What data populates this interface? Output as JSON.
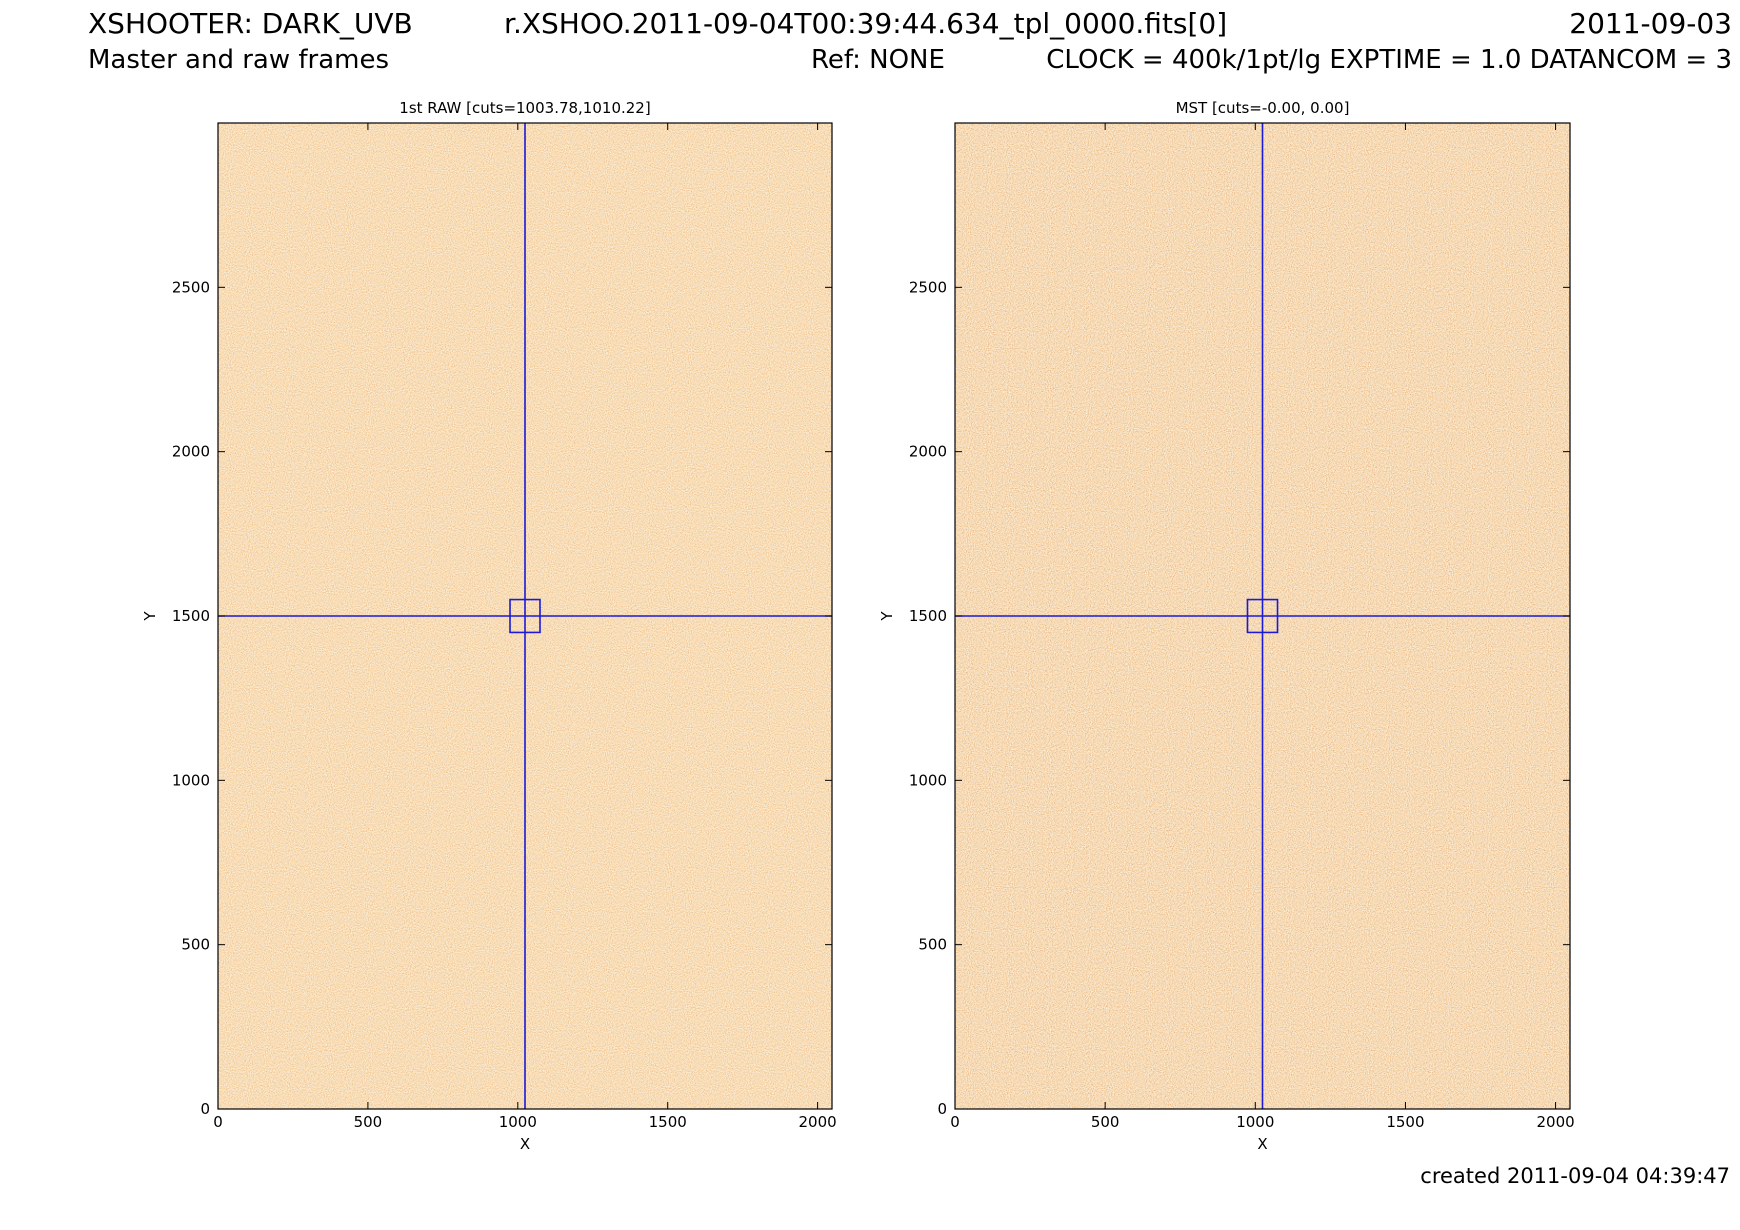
{
  "header": {
    "title": "XSHOOTER: DARK_UVB",
    "filename": "r.XSHOO.2011-09-04T00:39:44.634_tpl_0000.fits[0]",
    "date": "2011-09-03",
    "subtitle": "Master and raw frames",
    "ref": "Ref: NONE",
    "params": "CLOCK = 400k/1pt/lg EXPTIME = 1.0 DATANCOM = 3"
  },
  "footer": {
    "created": "created 2011-09-04 04:39:47"
  },
  "colors": {
    "crosshair": "#1a1ad8",
    "palette": [
      "#000000",
      "#3a0800",
      "#8a1e00",
      "#c0440a",
      "#d8661e",
      "#e88a2e",
      "#f0ae46",
      "#f8d27a",
      "#ffffff"
    ]
  },
  "chart_data": [
    {
      "type": "heatmap",
      "title": "1st RAW [cuts=1003.78,1010.22]",
      "xlabel": "X",
      "ylabel": "Y",
      "xlim": [
        0,
        2048
      ],
      "ylim": [
        0,
        3000
      ],
      "xticks": [
        0,
        500,
        1000,
        1500,
        2000
      ],
      "yticks": [
        0,
        500,
        1000,
        1500,
        2000,
        2500
      ],
      "image_tone": "raw",
      "crosshair": {
        "x": 1024,
        "y": 1500
      },
      "box": {
        "x0": 974,
        "x1": 1074,
        "y0": 1450,
        "y1": 1550
      }
    },
    {
      "type": "heatmap",
      "title": "MST [cuts=-0.00, 0.00]",
      "xlabel": "X",
      "ylabel": "Y",
      "xlim": [
        0,
        2048
      ],
      "ylim": [
        0,
        3000
      ],
      "xticks": [
        0,
        500,
        1000,
        1500,
        2000
      ],
      "yticks": [
        0,
        500,
        1000,
        1500,
        2000,
        2500
      ],
      "image_tone": "master",
      "crosshair": {
        "x": 1024,
        "y": 1500
      },
      "box": {
        "x0": 974,
        "x1": 1074,
        "y0": 1450,
        "y1": 1550
      }
    }
  ]
}
